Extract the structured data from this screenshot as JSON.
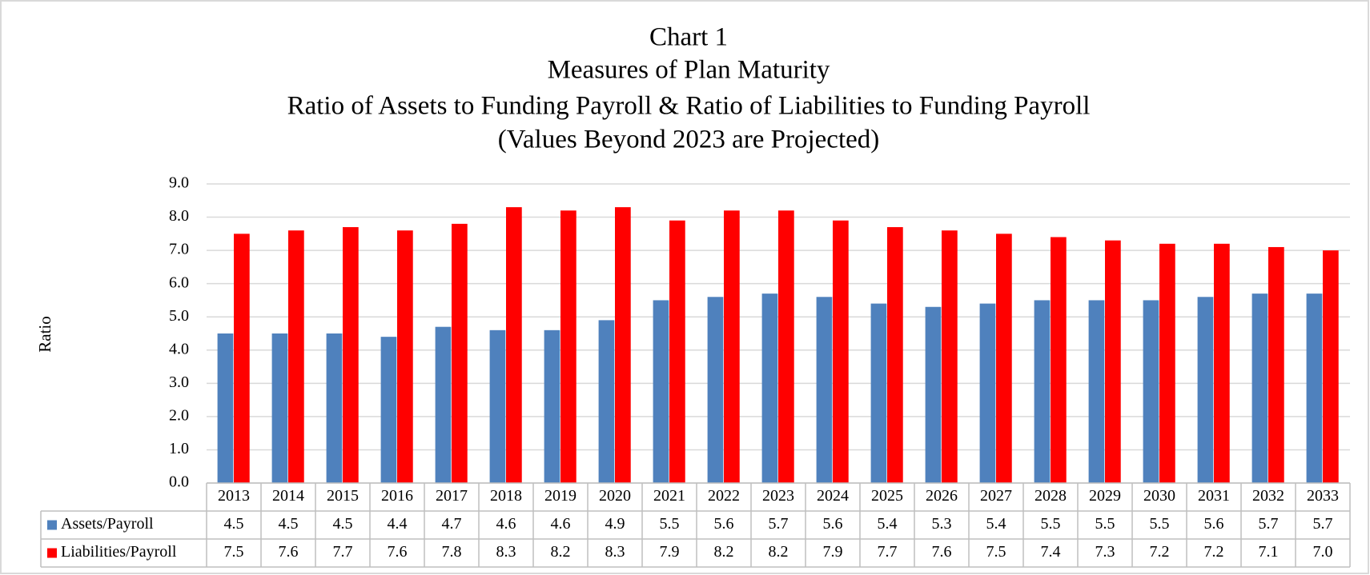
{
  "chart_data": {
    "type": "bar",
    "title": "Chart 1",
    "subtitle": [
      "Measures of Plan Maturity",
      "Ratio of Assets to Funding Payroll & Ratio of Liabilities to Funding Payroll",
      "(Values Beyond 2023 are Projected)"
    ],
    "y_label": "Ratio",
    "categories": [
      "2013",
      "2014",
      "2015",
      "2016",
      "2017",
      "2018",
      "2019",
      "2020",
      "2021",
      "2022",
      "2023",
      "2024",
      "2025",
      "2026",
      "2027",
      "2028",
      "2029",
      "2030",
      "2031",
      "2032",
      "2033"
    ],
    "series": [
      {
        "name": "Assets/Payroll",
        "color": "#4f81bd",
        "values": [
          4.5,
          4.5,
          4.5,
          4.4,
          4.7,
          4.6,
          4.6,
          4.9,
          5.5,
          5.6,
          5.7,
          5.6,
          5.4,
          5.3,
          5.4,
          5.5,
          5.5,
          5.5,
          5.6,
          5.7,
          5.7
        ],
        "value_labels": [
          "4.5",
          "4.5",
          "4.5",
          "4.4",
          "4.7",
          "4.6",
          "4.6",
          "4.9",
          "5.5",
          "5.6",
          "5.7",
          "5.6",
          "5.4",
          "5.3",
          "5.4",
          "5.5",
          "5.5",
          "5.5",
          "5.6",
          "5.7",
          "5.7"
        ]
      },
      {
        "name": "Liabilities/Payroll",
        "color": "#ff0000",
        "values": [
          7.5,
          7.6,
          7.7,
          7.6,
          7.8,
          8.3,
          8.2,
          8.3,
          7.9,
          8.2,
          8.2,
          7.9,
          7.7,
          7.6,
          7.5,
          7.4,
          7.3,
          7.2,
          7.2,
          7.1,
          7.0
        ],
        "value_labels": [
          "7.5",
          "7.6",
          "7.7",
          "7.6",
          "7.8",
          "8.3",
          "8.2",
          "8.3",
          "7.9",
          "8.2",
          "8.2",
          "7.9",
          "7.7",
          "7.6",
          "7.5",
          "7.4",
          "7.3",
          "7.2",
          "7.2",
          "7.1",
          "7.0"
        ]
      }
    ],
    "ylim": [
      0,
      9
    ],
    "yticks": [
      {
        "value": 0,
        "label": "0.0"
      },
      {
        "value": 1,
        "label": "1.0"
      },
      {
        "value": 2,
        "label": "2.0"
      },
      {
        "value": 3,
        "label": "3.0"
      },
      {
        "value": 4,
        "label": "4.0"
      },
      {
        "value": 5,
        "label": "5.0"
      },
      {
        "value": 6,
        "label": "6.0"
      },
      {
        "value": 7,
        "label": "7.0"
      },
      {
        "value": 8,
        "label": "8.0"
      },
      {
        "value": 9,
        "label": "9.0"
      }
    ],
    "grid": true
  }
}
